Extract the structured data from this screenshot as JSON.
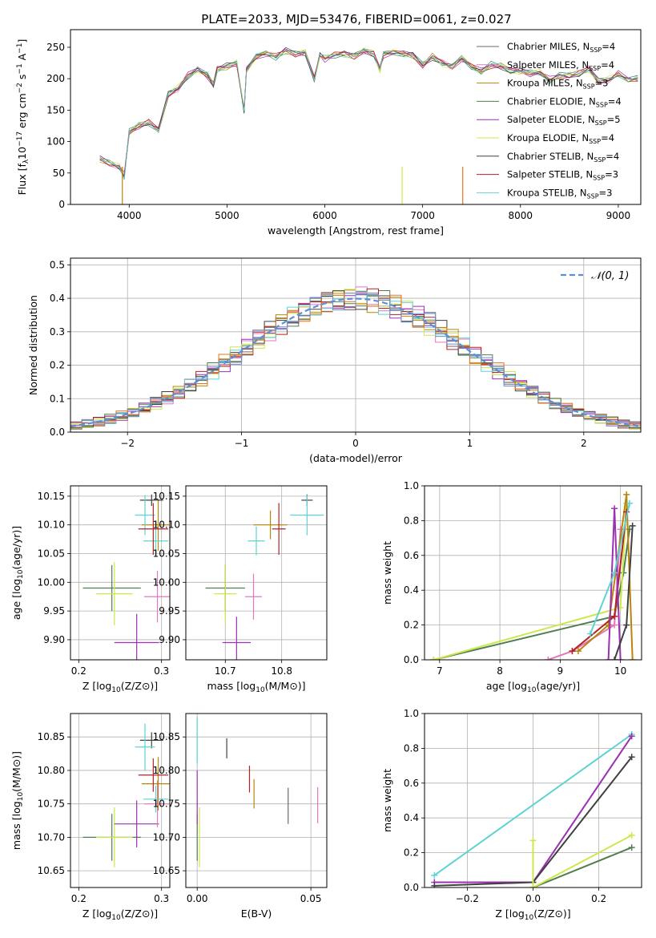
{
  "title": "PLATE=2033, MJD=53476, FIBERID=0061, z=0.027",
  "models": [
    {
      "name": "Chabrier MILES",
      "nssp": "4",
      "color": "#6a6a6a"
    },
    {
      "name": "Salpeter MILES",
      "nssp": "4",
      "color": "#e377c2"
    },
    {
      "name": "Kroupa MILES",
      "nssp": "3",
      "color": "#b8860b"
    },
    {
      "name": "Chabrier ELODIE",
      "nssp": "4",
      "color": "#4f7f4f"
    },
    {
      "name": "Salpeter ELODIE",
      "nssp": "5",
      "color": "#9b30b0"
    },
    {
      "name": "Kroupa ELODIE",
      "nssp": "4",
      "color": "#cde84a"
    },
    {
      "name": "Chabrier STELIB",
      "nssp": "4",
      "color": "#404040"
    },
    {
      "name": "Salpeter STELIB",
      "nssp": "3",
      "color": "#b22222"
    },
    {
      "name": "Kroupa STELIB",
      "nssp": "3",
      "color": "#5fd3d3"
    }
  ],
  "chart_data": [
    {
      "id": "spectrum",
      "type": "line",
      "xlabel": "wavelength [Angstrom, rest frame]",
      "ylabel": "Flux [f_λ 10^-17 erg cm^-2 s^-1 A^-1]",
      "xlim": [
        3400,
        9230
      ],
      "ylim": [
        0,
        278
      ],
      "xticks": [
        4000,
        5000,
        6000,
        7000,
        8000,
        9000
      ],
      "yticks": [
        0,
        50,
        100,
        150,
        200,
        250
      ],
      "legend": "top-right",
      "x": [
        3700,
        3800,
        3900,
        3950,
        4000,
        4100,
        4200,
        4300,
        4400,
        4500,
        4600,
        4700,
        4800,
        4861,
        4900,
        5000,
        5100,
        5175,
        5200,
        5300,
        5400,
        5500,
        5600,
        5700,
        5800,
        5893,
        5950,
        6000,
        6100,
        6200,
        6300,
        6400,
        6500,
        6563,
        6600,
        6700,
        6800,
        6900,
        7000,
        7100,
        7200,
        7300,
        7400,
        7500,
        7600,
        7700,
        7800,
        7900,
        8000,
        8100,
        8200,
        8300,
        8400,
        8500,
        8600,
        8700,
        8800,
        8900,
        9000,
        9100,
        9200
      ],
      "y": [
        72,
        65,
        60,
        45,
        115,
        125,
        130,
        118,
        175,
        185,
        205,
        215,
        205,
        190,
        215,
        220,
        225,
        150,
        215,
        235,
        240,
        235,
        245,
        240,
        242,
        200,
        238,
        232,
        238,
        240,
        236,
        245,
        240,
        215,
        238,
        242,
        240,
        238,
        222,
        235,
        225,
        218,
        232,
        220,
        212,
        222,
        220,
        212,
        212,
        208,
        210,
        198,
        205,
        205,
        208,
        215,
        195,
        198,
        208,
        198,
        200
      ]
    },
    {
      "id": "residuals",
      "type": "line",
      "xlabel": "(data-model)/error",
      "ylabel": "Normed distribution",
      "xlim": [
        -2.5,
        2.5
      ],
      "ylim": [
        0,
        0.52
      ],
      "xticks": [
        -2,
        -1,
        0,
        1,
        2
      ],
      "yticks": [
        0.0,
        0.1,
        0.2,
        0.3,
        0.4,
        0.5
      ],
      "legend": "top-right",
      "legend_label": "𝒩(0, 1)"
    },
    {
      "id": "age-vs-Z",
      "type": "scatter",
      "xlabel": "Z [log10(Z/Z⊙)]",
      "ylabel": "age  [log10(age/yr)]",
      "xlim": [
        0.19,
        0.31
      ],
      "ylim": [
        9.865,
        10.168
      ],
      "xticks": [
        0.2,
        0.3
      ],
      "yticks": [
        9.9,
        9.95,
        10.0,
        10.05,
        10.1,
        10.15
      ],
      "points": [
        {
          "x": 0.24,
          "y": 9.99,
          "xe": 0.035,
          "ye": 0.04,
          "m": 3
        },
        {
          "x": 0.243,
          "y": 9.98,
          "xe": 0.022,
          "ye": 0.055,
          "m": 5
        },
        {
          "x": 0.27,
          "y": 9.895,
          "xe": 0.027,
          "ye": 0.05,
          "m": 4
        },
        {
          "x": 0.295,
          "y": 9.975,
          "xe": 0.016,
          "ye": 0.045,
          "m": 1
        },
        {
          "x": 0.296,
          "y": 10.1,
          "xe": 0.02,
          "ye": 0.045,
          "m": 2
        },
        {
          "x": 0.293,
          "y": 10.072,
          "xe": 0.015,
          "ye": 0.025,
          "m": 8
        },
        {
          "x": 0.288,
          "y": 10.143,
          "xe": 0.014,
          "ye": 0.01,
          "m": 6
        },
        {
          "x": 0.28,
          "y": 10.117,
          "xe": 0.012,
          "ye": 0.035,
          "m": 8
        },
        {
          "x": 0.29,
          "y": 10.093,
          "xe": 0.018,
          "ye": 0.045,
          "m": 7
        }
      ]
    },
    {
      "id": "age-vs-mass",
      "type": "scatter",
      "xlabel": "mass [log10(M/M⊙)]",
      "ylabel": "",
      "xlim": [
        10.63,
        10.88
      ],
      "ylim": [
        9.865,
        10.168
      ],
      "xticks": [
        10.7,
        10.8
      ],
      "yticks": [
        9.9,
        9.95,
        10.0,
        10.05,
        10.1,
        10.15
      ],
      "points": [
        {
          "x": 10.7,
          "y": 9.99,
          "xe": 0.035,
          "ye": 0.04,
          "m": 3
        },
        {
          "x": 10.7,
          "y": 9.98,
          "xe": 0.02,
          "ye": 0.05,
          "m": 5
        },
        {
          "x": 10.72,
          "y": 9.895,
          "xe": 0.025,
          "ye": 0.045,
          "m": 4
        },
        {
          "x": 10.75,
          "y": 9.975,
          "xe": 0.015,
          "ye": 0.04,
          "m": 1
        },
        {
          "x": 10.78,
          "y": 10.1,
          "xe": 0.03,
          "ye": 0.025,
          "m": 2
        },
        {
          "x": 10.755,
          "y": 10.072,
          "xe": 0.015,
          "ye": 0.025,
          "m": 8
        },
        {
          "x": 10.845,
          "y": 10.143,
          "xe": 0.01,
          "ye": 0.01,
          "m": 6
        },
        {
          "x": 10.845,
          "y": 10.117,
          "xe": 0.03,
          "ye": 0.035,
          "m": 8
        },
        {
          "x": 10.795,
          "y": 10.093,
          "xe": 0.012,
          "ye": 0.045,
          "m": 7
        }
      ]
    },
    {
      "id": "mass-weight-vs-age",
      "type": "line",
      "xlabel": "age  [log10(age/yr)]",
      "ylabel": "mass weight",
      "xlim": [
        6.75,
        10.35
      ],
      "ylim": [
        0,
        1.0
      ],
      "xticks": [
        7,
        8,
        9,
        10
      ],
      "yticks": [
        0.0,
        0.2,
        0.4,
        0.6,
        0.8,
        1.0
      ],
      "series": [
        {
          "m": 3,
          "x": [
            6.9,
            9.9,
            10.05,
            10.15
          ],
          "y": [
            0.0,
            0.25,
            0.5,
            0.75
          ]
        },
        {
          "m": 5,
          "x": [
            6.9,
            10.0,
            10.1
          ],
          "y": [
            0.0,
            0.3,
            0.9
          ]
        },
        {
          "m": 1,
          "x": [
            8.8,
            9.2,
            9.9,
            10.0
          ],
          "y": [
            0.0,
            0.05,
            0.2,
            0.75
          ]
        },
        {
          "m": 2,
          "x": [
            9.3,
            9.8,
            10.1,
            10.2
          ],
          "y": [
            0.05,
            0.2,
            0.95,
            0.0
          ]
        },
        {
          "m": 7,
          "x": [
            9.2,
            9.9,
            10.1
          ],
          "y": [
            0.05,
            0.25,
            0.85
          ]
        },
        {
          "m": 4,
          "x": [
            9.8,
            9.9,
            10.0
          ],
          "y": [
            0.0,
            0.87,
            0.0
          ]
        },
        {
          "m": 6,
          "x": [
            9.9,
            10.1,
            10.2
          ],
          "y": [
            0.0,
            0.2,
            0.77
          ]
        },
        {
          "m": 8,
          "x": [
            9.5,
            9.9,
            10.15
          ],
          "y": [
            0.15,
            0.5,
            0.9
          ]
        }
      ]
    },
    {
      "id": "mass-vs-Z",
      "type": "scatter",
      "xlabel": "Z [log10(Z/Z⊙)]",
      "ylabel": "mass [log10(M/M⊙)]",
      "xlim": [
        0.19,
        0.31
      ],
      "ylim": [
        10.625,
        10.885
      ],
      "xticks": [
        0.2,
        0.3
      ],
      "yticks": [
        10.65,
        10.7,
        10.75,
        10.8,
        10.85
      ],
      "points": [
        {
          "x": 0.24,
          "y": 10.7,
          "xe": 0.035,
          "ye": 0.035,
          "m": 3
        },
        {
          "x": 0.243,
          "y": 10.7,
          "xe": 0.022,
          "ye": 0.045,
          "m": 5
        },
        {
          "x": 0.27,
          "y": 10.72,
          "xe": 0.027,
          "ye": 0.035,
          "m": 4
        },
        {
          "x": 0.295,
          "y": 10.75,
          "xe": 0.016,
          "ye": 0.035,
          "m": 1
        },
        {
          "x": 0.296,
          "y": 10.78,
          "xe": 0.02,
          "ye": 0.04,
          "m": 2
        },
        {
          "x": 0.293,
          "y": 10.757,
          "xe": 0.015,
          "ye": 0.02,
          "m": 8
        },
        {
          "x": 0.288,
          "y": 10.845,
          "xe": 0.014,
          "ye": 0.012,
          "m": 6
        },
        {
          "x": 0.28,
          "y": 10.835,
          "xe": 0.012,
          "ye": 0.035,
          "m": 8
        },
        {
          "x": 0.29,
          "y": 10.793,
          "xe": 0.018,
          "ye": 0.025,
          "m": 7
        }
      ]
    },
    {
      "id": "mass-vs-EBV",
      "type": "scatter",
      "xlabel": "E(B-V)",
      "ylabel": "",
      "xlim": [
        -0.005,
        0.057
      ],
      "ylim": [
        10.625,
        10.885
      ],
      "xticks": [
        0.0,
        0.05
      ],
      "yticks": [
        10.65,
        10.7,
        10.75,
        10.8,
        10.85
      ],
      "points": [
        {
          "x": 0.0,
          "y": 10.7,
          "xe": 0.0,
          "ye": 0.035,
          "m": 3
        },
        {
          "x": 0.001,
          "y": 10.7,
          "xe": 0.0,
          "ye": 0.045,
          "m": 5
        },
        {
          "x": 0.0,
          "y": 10.76,
          "xe": 0.0,
          "ye": 0.04,
          "m": 4
        },
        {
          "x": 0.013,
          "y": 10.833,
          "xe": 0.0,
          "ye": 0.015,
          "m": 6
        },
        {
          "x": 0.0,
          "y": 10.845,
          "xe": 0.0,
          "ye": 0.035,
          "m": 8
        },
        {
          "x": 0.023,
          "y": 10.787,
          "xe": 0.0,
          "ye": 0.02,
          "m": 7
        },
        {
          "x": 0.025,
          "y": 10.765,
          "xe": 0.0,
          "ye": 0.022,
          "m": 2
        },
        {
          "x": 0.04,
          "y": 10.747,
          "xe": 0.0,
          "ye": 0.027,
          "m": 0
        },
        {
          "x": 0.053,
          "y": 10.748,
          "xe": 0.0,
          "ye": 0.027,
          "m": 1
        }
      ]
    },
    {
      "id": "mass-weight-vs-Z",
      "type": "line",
      "xlabel": "Z [log10(Z/Z⊙)]",
      "ylabel": "mass weight",
      "xlim": [
        -0.33,
        0.33
      ],
      "ylim": [
        0,
        1.0
      ],
      "xticks": [
        -0.2,
        0.0,
        0.2
      ],
      "yticks": [
        0.0,
        0.2,
        0.4,
        0.6,
        0.8,
        1.0
      ],
      "series": [
        {
          "m": 8,
          "x": [
            -0.3,
            0.3
          ],
          "y": [
            0.07,
            0.88
          ]
        },
        {
          "m": 4,
          "x": [
            -0.3,
            0.0,
            0.3
          ],
          "y": [
            0.03,
            0.03,
            0.87
          ]
        },
        {
          "m": 6,
          "x": [
            -0.3,
            0.0,
            0.3
          ],
          "y": [
            0.01,
            0.03,
            0.75
          ]
        },
        {
          "m": 3,
          "x": [
            0.0,
            0.3
          ],
          "y": [
            0.0,
            0.23
          ]
        },
        {
          "m": 5,
          "x": [
            0.0,
            0.3
          ],
          "y": [
            0.0,
            0.3
          ]
        },
        {
          "m": 5,
          "x": [
            0.0,
            0.0
          ],
          "y": [
            0.0,
            0.27
          ]
        }
      ]
    }
  ]
}
